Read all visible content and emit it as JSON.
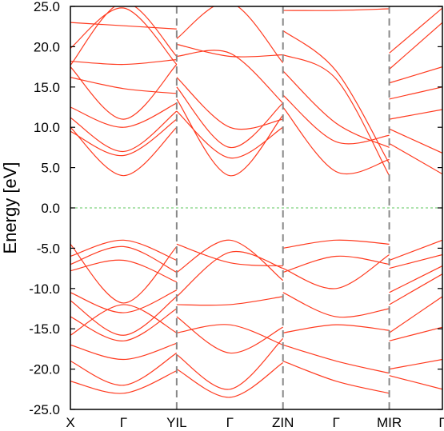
{
  "chart_data": {
    "type": "line",
    "title": "",
    "ylabel": "Energy [eV]",
    "xlabel": "",
    "ylim": [
      -25.0,
      25.0
    ],
    "y_ticks": [
      "25.0",
      "20.0",
      "15.0",
      "10.0",
      "5.0",
      "0.0",
      "-5.0",
      "-10.0",
      "-15.0",
      "-20.0",
      "-25.0"
    ],
    "y_tick_values": [
      25,
      20,
      15,
      10,
      5,
      0,
      -5,
      -10,
      -15,
      -20,
      -25
    ],
    "x_ticks": [
      "X",
      "Γ",
      "YIL",
      "Γ",
      "ZIN",
      "Γ",
      "MIR",
      "Γ"
    ],
    "x_tick_positions": [
      0,
      0.5,
      1.0,
      1.5,
      2.0,
      2.5,
      3.0,
      3.5
    ],
    "xlim": [
      0,
      3.5
    ],
    "segment_breaks": [
      1.0,
      2.0,
      3.0
    ],
    "fermi_level": 0.0,
    "colors": {
      "bands": "#ff3a1f",
      "fermi": "#7fd27f",
      "divider": "#888888",
      "axis": "#000000"
    },
    "grid": false,
    "segments": [
      {
        "x_range": [
          0,
          1.0
        ],
        "bands": [
          [
            23.0,
            22.6,
            22.2
          ],
          [
            19.8,
            24.8,
            17.8
          ],
          [
            17.7,
            25.5,
            18.8
          ],
          [
            18.2,
            17.8,
            18.4
          ],
          [
            17.5,
            11.0,
            17.8
          ],
          [
            16.2,
            14.8,
            14.2
          ],
          [
            12.5,
            10.0,
            13.0
          ],
          [
            11.2,
            7.0,
            12.0
          ],
          [
            10.0,
            4.0,
            10.0
          ],
          [
            9.5,
            6.5,
            11.0
          ],
          [
            -4.5,
            -11.8,
            -4.8
          ],
          [
            -6.0,
            -4.0,
            -6.5
          ],
          [
            -7.0,
            -4.8,
            -8.0
          ],
          [
            -7.8,
            -6.5,
            -9.2
          ],
          [
            -10.5,
            -13.0,
            -10.2
          ],
          [
            -11.5,
            -15.8,
            -11.0
          ],
          [
            -13.5,
            -16.5,
            -12.5
          ],
          [
            -15.8,
            -12.0,
            -15.5
          ],
          [
            -17.0,
            -18.8,
            -16.8
          ],
          [
            -19.0,
            -22.0,
            -18.0
          ],
          [
            -21.5,
            -23.0,
            -20.2
          ]
        ]
      },
      {
        "x_range": [
          1.0,
          2.0
        ],
        "bands": [
          [
            21.0,
            25.5,
            18.0
          ],
          [
            20.3,
            18.8,
            19.0
          ],
          [
            18.8,
            19.2,
            13.0
          ],
          [
            16.2,
            10.0,
            11.0
          ],
          [
            13.5,
            4.0,
            11.5
          ],
          [
            12.0,
            6.2,
            10.0
          ],
          [
            15.0,
            7.5,
            13.0
          ],
          [
            -4.5,
            -6.8,
            -7.2
          ],
          [
            -8.0,
            -4.0,
            -9.0
          ],
          [
            -11.0,
            -5.5,
            -7.5
          ],
          [
            -12.0,
            -12.0,
            -11.0
          ],
          [
            -13.5,
            -18.0,
            -14.8
          ],
          [
            -15.5,
            -14.5,
            -17.0
          ],
          [
            -18.2,
            -22.5,
            -16.2
          ],
          [
            -20.0,
            -23.5,
            -19.2
          ]
        ]
      },
      {
        "x_range": [
          2.0,
          3.0
        ],
        "bands": [
          [
            24.5,
            24.5,
            24.7
          ],
          [
            22.0,
            17.0,
            5.5
          ],
          [
            19.0,
            16.0,
            4.0
          ],
          [
            17.0,
            10.5,
            7.5
          ],
          [
            14.0,
            8.2,
            9.0
          ],
          [
            12.5,
            4.5,
            6.0
          ],
          [
            -5.0,
            -4.0,
            -4.5
          ],
          [
            -8.0,
            -6.0,
            -7.0
          ],
          [
            -7.5,
            -10.0,
            -5.8
          ],
          [
            -10.5,
            -13.5,
            -12.5
          ],
          [
            -15.5,
            -14.5,
            -15.2
          ],
          [
            -17.0,
            -19.0,
            -20.5
          ],
          [
            -19.0,
            -21.5,
            -23.0
          ]
        ]
      },
      {
        "x_range": [
          3.0,
          3.5
        ],
        "bands": [
          [
            19.2,
            24.8
          ],
          [
            17.2,
            23.0
          ],
          [
            15.5,
            17.5
          ],
          [
            13.5,
            15.0
          ],
          [
            11.0,
            12.2
          ],
          [
            9.8,
            6.8
          ],
          [
            8.0,
            4.2
          ],
          [
            -6.5,
            -4.0
          ],
          [
            -7.5,
            -5.8
          ],
          [
            -10.5,
            -7.2
          ],
          [
            -12.0,
            -8.2
          ],
          [
            -15.5,
            -11.0
          ],
          [
            -16.5,
            -14.8
          ],
          [
            -20.0,
            -18.8
          ],
          [
            -20.8,
            -22.5
          ]
        ]
      }
    ]
  }
}
